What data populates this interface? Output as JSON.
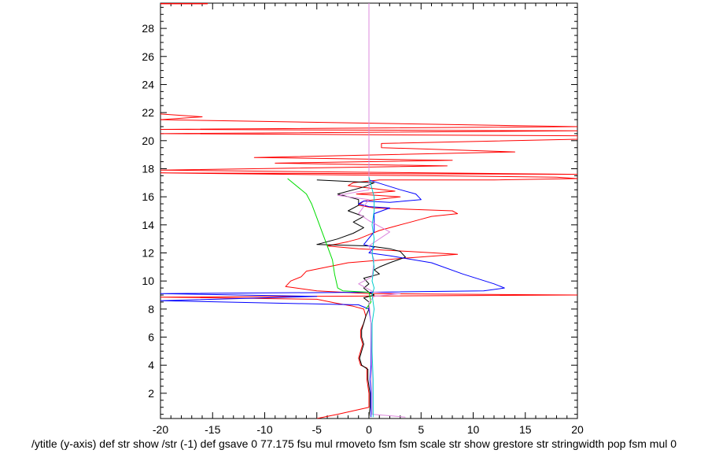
{
  "chart_data": {
    "type": "line",
    "title": "",
    "xlabel": "/ytitle (y-axis) def str show /str (-1) def gsave 0 77.175 fsu mul rmoveto fsm fsm scale str show grestore str stringwidth pop fsm mul 0",
    "ylabel": "",
    "xlim": [
      -20,
      20
    ],
    "ylim": [
      0.2,
      29.8
    ],
    "grid": false,
    "legend": "none",
    "x_ticks": [
      -20,
      -15,
      -10,
      -5,
      0,
      5,
      10,
      15,
      20
    ],
    "y_ticks": [
      2,
      4,
      6,
      8,
      10,
      12,
      14,
      16,
      18,
      20,
      22,
      24,
      26,
      28
    ],
    "series": [
      {
        "color": "#ff0000",
        "points": [
          [
            -20,
            29.8
          ],
          [
            -15.5,
            29.8
          ],
          [
            -15.5,
            29.75
          ],
          [
            -20,
            29.75
          ]
        ]
      },
      {
        "color": "#ff0000",
        "points": [
          [
            -20,
            21.9
          ],
          [
            -16,
            21.7
          ],
          [
            -20,
            21.5
          ],
          [
            20,
            21.0
          ],
          [
            -20,
            20.8
          ],
          [
            20,
            20.7
          ],
          [
            -20,
            20.5
          ],
          [
            20,
            20.35
          ],
          [
            20,
            20.1
          ],
          [
            1.2,
            19.8
          ],
          [
            1.2,
            19.5
          ],
          [
            14,
            19.2
          ],
          [
            -11,
            18.8
          ],
          [
            8,
            18.6
          ],
          [
            -9,
            18.4
          ],
          [
            7.5,
            18.2
          ],
          [
            -20,
            17.9
          ],
          [
            20,
            17.6
          ],
          [
            -20,
            17.7
          ],
          [
            18,
            17.4
          ],
          [
            20,
            17.3
          ],
          [
            12,
            17.2
          ],
          [
            1,
            17.2
          ],
          [
            -1.5,
            17.0
          ],
          [
            -2,
            16.8
          ],
          [
            2.5,
            16.4
          ],
          [
            -1.2,
            16.2
          ],
          [
            3,
            16.0
          ],
          [
            -0.5,
            15.7
          ],
          [
            -1,
            15.4
          ],
          [
            0.5,
            15.2
          ],
          [
            8,
            15.0
          ],
          [
            8.5,
            14.8
          ],
          [
            6,
            14.6
          ],
          [
            5,
            14.4
          ],
          [
            4,
            14.2
          ],
          [
            2.5,
            13.9
          ],
          [
            1,
            13.6
          ],
          [
            0,
            13.3
          ],
          [
            -1,
            13.0
          ],
          [
            -2,
            12.8
          ],
          [
            -4,
            12.5
          ],
          [
            -1,
            12.3
          ],
          [
            4,
            12.1
          ],
          [
            8.5,
            11.9
          ],
          [
            3,
            11.6
          ],
          [
            -2,
            11.3
          ],
          [
            -4,
            11.0
          ],
          [
            -6,
            10.7
          ],
          [
            -6.5,
            10.3
          ],
          [
            -7.5,
            10.0
          ],
          [
            -8,
            9.6
          ],
          [
            -5,
            9.3
          ],
          [
            0,
            9.1
          ],
          [
            20,
            9.0
          ],
          [
            -20,
            8.85
          ],
          [
            -5,
            8.7
          ],
          [
            -3,
            8.4
          ],
          [
            -1.5,
            8.2
          ],
          [
            -0.5,
            8.0
          ],
          [
            -0.3,
            7.5
          ],
          [
            -0.5,
            7.0
          ],
          [
            -0.8,
            6.5
          ],
          [
            -0.8,
            6.0
          ],
          [
            -0.6,
            5.5
          ],
          [
            -0.8,
            5.0
          ],
          [
            -1.0,
            4.5
          ],
          [
            -0.8,
            4.0
          ],
          [
            -0.2,
            3.8
          ],
          [
            -0.2,
            3.0
          ],
          [
            0,
            2.0
          ],
          [
            0,
            1.0
          ],
          [
            -3,
            0.5
          ],
          [
            -5,
            0.2
          ]
        ]
      },
      {
        "color": "#000000",
        "points": [
          [
            -5,
            17.2
          ],
          [
            0.5,
            17.0
          ],
          [
            -0.5,
            16.7
          ],
          [
            -3,
            16.2
          ],
          [
            -1,
            15.8
          ],
          [
            -1,
            15.4
          ],
          [
            -2,
            15.0
          ],
          [
            -0.5,
            14.6
          ],
          [
            -1.5,
            14.2
          ],
          [
            -0.5,
            13.8
          ],
          [
            -1.5,
            13.4
          ],
          [
            -3,
            13.0
          ],
          [
            -5,
            12.6
          ],
          [
            0,
            12.5
          ],
          [
            2,
            12.3
          ],
          [
            3,
            12.1
          ],
          [
            3.5,
            11.7
          ],
          [
            2,
            11.3
          ],
          [
            1,
            11.0
          ],
          [
            0.5,
            10.8
          ],
          [
            1,
            10.5
          ],
          [
            -0.5,
            10.2
          ],
          [
            0,
            9.8
          ],
          [
            -0.5,
            9.5
          ],
          [
            0,
            9.2
          ],
          [
            0.5,
            9.0
          ],
          [
            -0.5,
            8.8
          ],
          [
            0,
            8.5
          ],
          [
            0,
            8.0
          ],
          [
            -0.3,
            7.5
          ],
          [
            -0.5,
            7.0
          ],
          [
            -0.7,
            6.5
          ],
          [
            -0.7,
            6.0
          ],
          [
            -0.5,
            5.5
          ],
          [
            -0.7,
            5.0
          ],
          [
            -0.9,
            4.5
          ],
          [
            -0.7,
            4.0
          ],
          [
            -0.1,
            3.7
          ],
          [
            -0.1,
            3.0
          ],
          [
            0.1,
            2.0
          ],
          [
            0.1,
            1.0
          ],
          [
            0,
            0.3
          ]
        ]
      },
      {
        "color": "#0000ff",
        "points": [
          [
            0,
            17.2
          ],
          [
            3,
            16.5
          ],
          [
            4.5,
            16.2
          ],
          [
            5,
            15.8
          ],
          [
            2,
            15.6
          ],
          [
            -0.5,
            15.7
          ],
          [
            -1,
            15.5
          ],
          [
            0,
            15.3
          ],
          [
            2,
            15.2
          ],
          [
            0.5,
            14.8
          ],
          [
            0.5,
            13.5
          ],
          [
            -0.5,
            12.6
          ],
          [
            0.5,
            12.4
          ],
          [
            0,
            12.0
          ],
          [
            2,
            11.8
          ],
          [
            6,
            11.3
          ],
          [
            9,
            10.5
          ],
          [
            12,
            9.8
          ],
          [
            13,
            9.5
          ],
          [
            11,
            9.3
          ],
          [
            0,
            9.2
          ],
          [
            -20,
            9.1
          ],
          [
            -5,
            8.9
          ],
          [
            -20,
            8.6
          ],
          [
            -1,
            8.3
          ],
          [
            0,
            8.0
          ],
          [
            0.2,
            7.0
          ],
          [
            0.2,
            6.0
          ],
          [
            0.2,
            5.0
          ],
          [
            0.2,
            4.0
          ],
          [
            0.1,
            3.0
          ],
          [
            0.2,
            2.0
          ],
          [
            0.2,
            1.0
          ],
          [
            0.2,
            0.3
          ]
        ]
      },
      {
        "color": "#00dd00",
        "points": [
          [
            -7.8,
            17.3
          ],
          [
            -6,
            16.2
          ],
          [
            -5.5,
            15.5
          ],
          [
            -5,
            14.5
          ],
          [
            -4.5,
            13.5
          ],
          [
            -4,
            12.5
          ],
          [
            -3.5,
            11.5
          ],
          [
            -3.3,
            10.5
          ],
          [
            -3.0,
            9.5
          ],
          [
            -2.5,
            9.3
          ],
          [
            0,
            9.2
          ],
          [
            0.2,
            8.5
          ],
          [
            -0.3,
            8.0
          ]
        ]
      },
      {
        "color": "#dd88dd",
        "points": [
          [
            0,
            29.8
          ],
          [
            0,
            17.4
          ],
          [
            0,
            16.5
          ],
          [
            -3,
            16.1
          ],
          [
            0,
            15.8
          ],
          [
            -1,
            14.8
          ],
          [
            0,
            14.3
          ],
          [
            2,
            13.5
          ],
          [
            0,
            12.5
          ],
          [
            0.5,
            11.5
          ],
          [
            0.3,
            10.3
          ],
          [
            -1,
            9.8
          ],
          [
            0.5,
            9.2
          ],
          [
            3,
            9.1
          ],
          [
            0.5,
            8.9
          ],
          [
            0,
            8.5
          ],
          [
            0.2,
            7.0
          ],
          [
            0.3,
            2.0
          ],
          [
            0.3,
            0.5
          ],
          [
            3.5,
            0.3
          ]
        ]
      },
      {
        "color": "#00cccc",
        "points": [
          [
            0,
            17.4
          ],
          [
            0.5,
            16.0
          ],
          [
            0.5,
            15.0
          ],
          [
            0.3,
            14.0
          ],
          [
            0.5,
            13.0
          ],
          [
            0.3,
            12.0
          ],
          [
            0.5,
            11.0
          ],
          [
            0.3,
            10.0
          ],
          [
            0.5,
            9.5
          ],
          [
            0.3,
            9.0
          ],
          [
            0.5,
            8.0
          ],
          [
            0.3,
            7.0
          ],
          [
            0.3,
            5.0
          ],
          [
            0.4,
            3.0
          ],
          [
            0.4,
            1.0
          ],
          [
            0.4,
            0.3
          ]
        ]
      }
    ]
  }
}
